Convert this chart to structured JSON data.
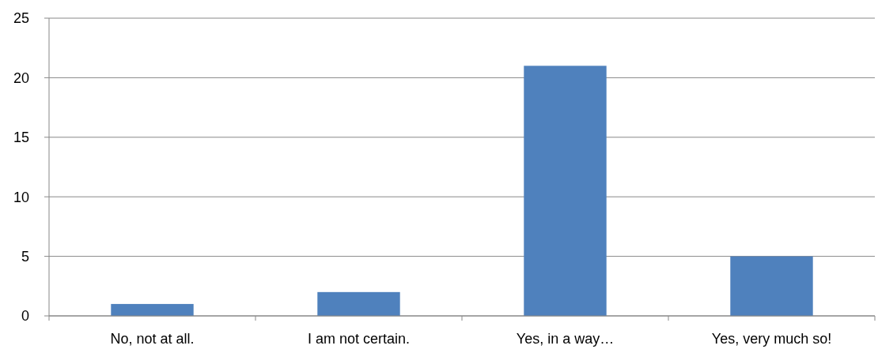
{
  "chart_data": {
    "type": "bar",
    "categories": [
      "No, not at all.",
      "I am not certain.",
      "Yes, in a way…",
      "Yes, very much so!"
    ],
    "values": [
      1,
      2,
      21,
      5
    ],
    "color": "#4f81bd",
    "ylim": [
      0,
      25
    ],
    "yticks": [
      0,
      5,
      10,
      15,
      20,
      25
    ],
    "grid": "y"
  }
}
